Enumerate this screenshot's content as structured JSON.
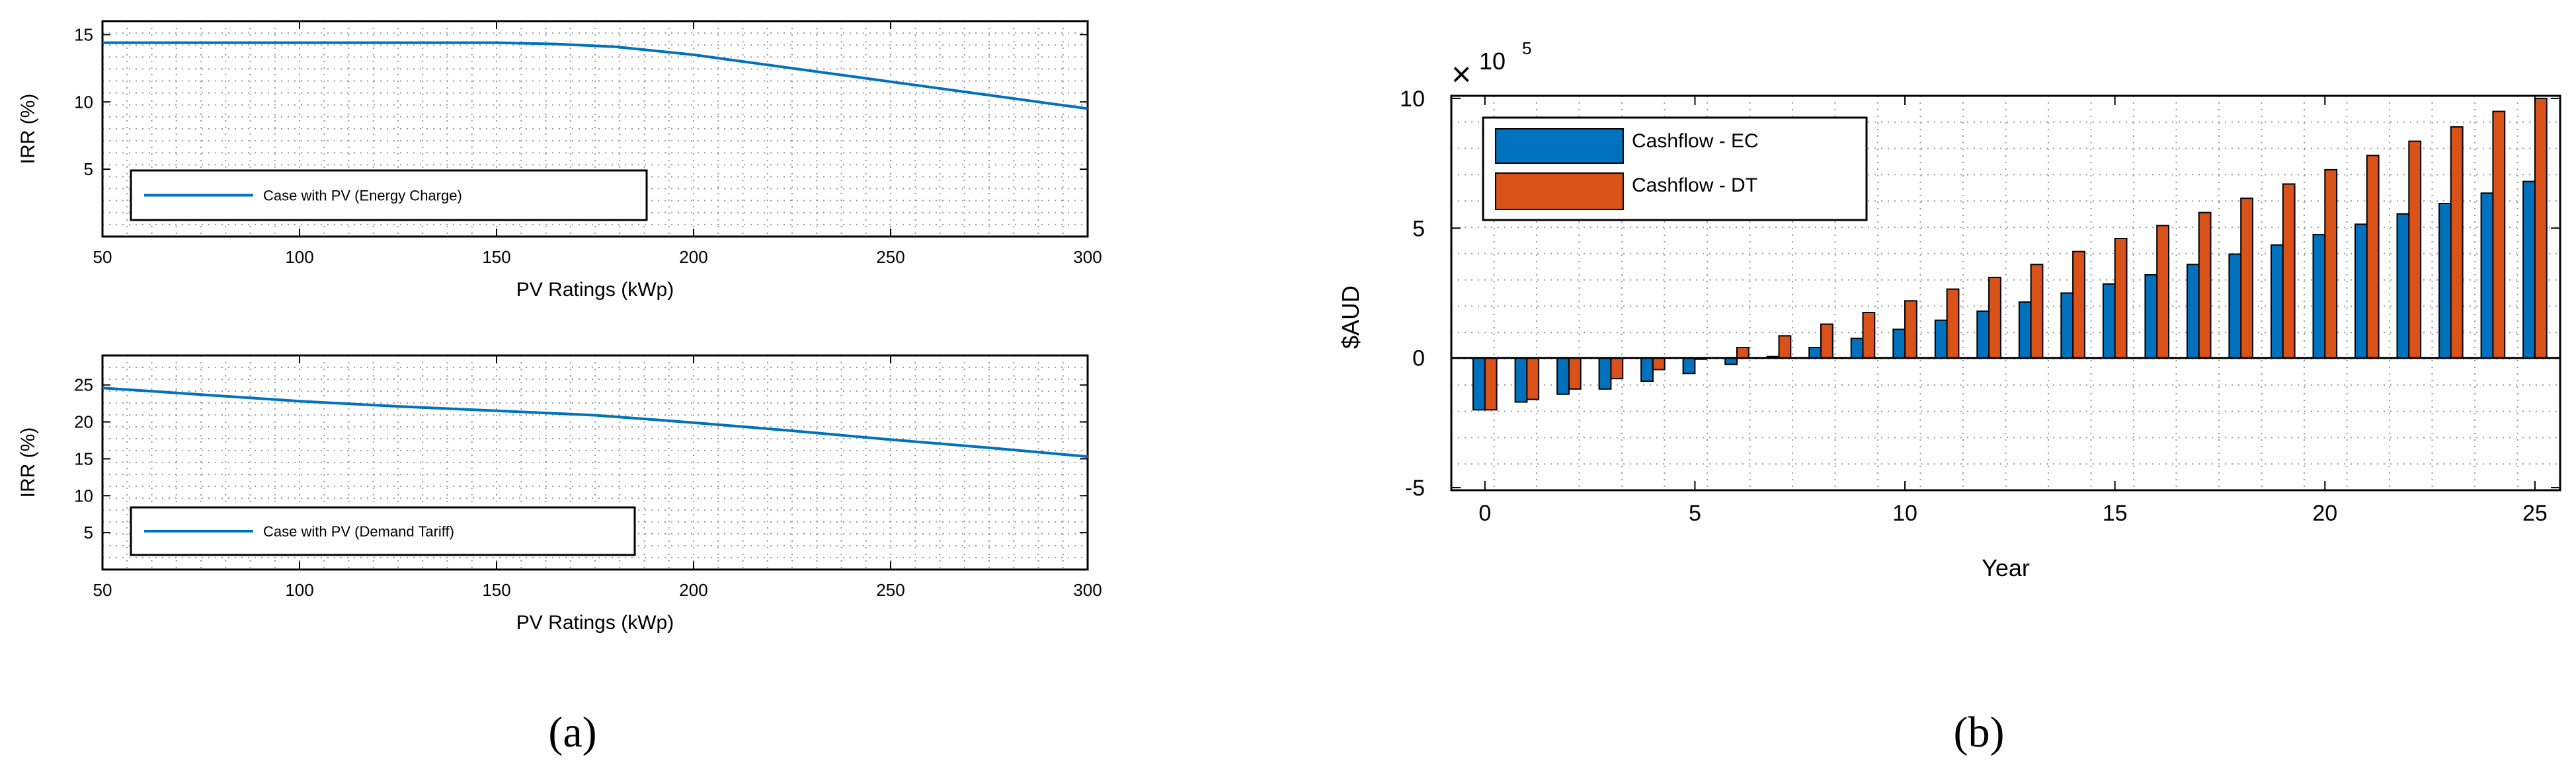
{
  "panel_labels": [
    "(a)",
    "(b)"
  ],
  "colors": {
    "line": "#0072BD",
    "ec": "#0072BD",
    "dt": "#D95319",
    "grid": "#9a9a9a",
    "axis": "#000000"
  },
  "chart_data": [
    {
      "type": "line",
      "panel": "(a)",
      "xlabel": "PV Ratings (kWp)",
      "ylabel": "IRR (%)",
      "xlim": [
        50,
        300
      ],
      "ylim": [
        0,
        16
      ],
      "xticks": [
        50,
        100,
        150,
        200,
        250,
        300
      ],
      "yticks": [
        5,
        10,
        15
      ],
      "grid": true,
      "legend_position": "lower-left",
      "series": [
        {
          "name": "Case with PV (Energy Charge)",
          "x": [
            50,
            75,
            100,
            125,
            150,
            165,
            180,
            190,
            200,
            210,
            220,
            230,
            240,
            250,
            260,
            270,
            280,
            290,
            300
          ],
          "y": [
            14.4,
            14.4,
            14.4,
            14.4,
            14.4,
            14.3,
            14.1,
            13.8,
            13.5,
            13.1,
            12.7,
            12.3,
            11.9,
            11.5,
            11.1,
            10.7,
            10.3,
            9.9,
            9.5
          ]
        }
      ]
    },
    {
      "type": "line",
      "panel": "(a)",
      "xlabel": "PV Ratings (kWp)",
      "ylabel": "IRR (%)",
      "xlim": [
        50,
        300
      ],
      "ylim": [
        0,
        29
      ],
      "xticks": [
        50,
        100,
        150,
        200,
        250,
        300
      ],
      "yticks": [
        5,
        10,
        15,
        20,
        25
      ],
      "grid": true,
      "legend_position": "lower-left",
      "series": [
        {
          "name": "Case with PV (Demand Tariff)",
          "x": [
            50,
            75,
            100,
            125,
            150,
            175,
            200,
            225,
            250,
            275,
            300
          ],
          "y": [
            24.6,
            23.7,
            22.8,
            22.1,
            21.5,
            20.9,
            19.9,
            18.8,
            17.6,
            16.5,
            15.3
          ]
        }
      ]
    },
    {
      "type": "bar",
      "panel": "(b)",
      "xlabel": "Year",
      "ylabel": "$AUD",
      "exponent_label": "×10^5",
      "multiplier_base": "10",
      "multiplier_exp": "5",
      "xlim": [
        -0.8,
        25.6
      ],
      "ylim": [
        -5.1,
        10.1
      ],
      "xticks": [
        0,
        5,
        10,
        15,
        20,
        25
      ],
      "yticks": [
        -5,
        0,
        5,
        10
      ],
      "grid": true,
      "legend_position": "top-left",
      "categories": [
        0,
        1,
        2,
        3,
        4,
        5,
        6,
        7,
        8,
        9,
        10,
        11,
        12,
        13,
        14,
        15,
        16,
        17,
        18,
        19,
        20,
        21,
        22,
        23,
        24,
        25
      ],
      "series": [
        {
          "name": "Cashflow - EC",
          "values": [
            -2.0,
            -1.7,
            -1.4,
            -1.2,
            -0.9,
            -0.6,
            -0.25,
            0.05,
            0.4,
            0.75,
            1.1,
            1.45,
            1.8,
            2.15,
            2.5,
            2.85,
            3.2,
            3.6,
            4.0,
            4.35,
            4.75,
            5.15,
            5.55,
            5.95,
            6.35,
            6.8
          ]
        },
        {
          "name": "Cashflow - DT",
          "values": [
            -2.0,
            -1.6,
            -1.2,
            -0.8,
            -0.45,
            -0.05,
            0.4,
            0.85,
            1.3,
            1.75,
            2.2,
            2.65,
            3.1,
            3.6,
            4.1,
            4.6,
            5.1,
            5.6,
            6.15,
            6.7,
            7.25,
            7.8,
            8.35,
            8.9,
            9.5,
            10.0
          ]
        }
      ]
    }
  ]
}
